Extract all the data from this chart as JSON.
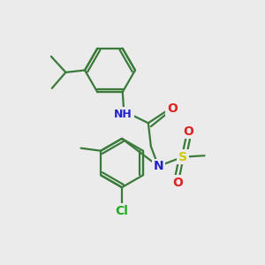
{
  "bg_color": "#ebebeb",
  "bond_color": "#3a7a3a",
  "bond_width": 1.6,
  "atom_colors": {
    "N": "#2222cc",
    "H": "#888888",
    "O": "#dd2222",
    "S": "#cccc00",
    "Cl": "#22aa22",
    "C": "#3a7a3a"
  },
  "figsize": [
    3.0,
    3.0
  ],
  "dpi": 100
}
